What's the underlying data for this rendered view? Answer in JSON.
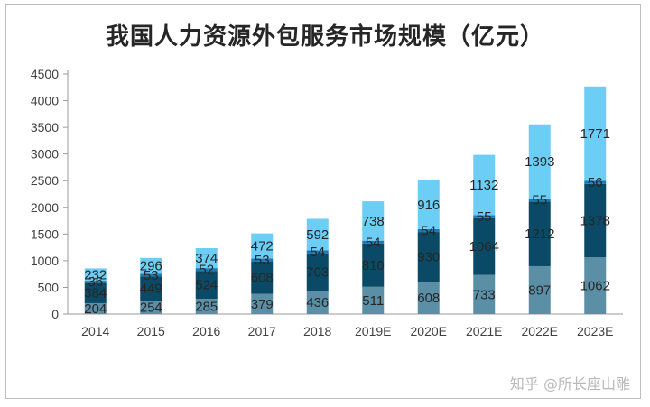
{
  "title": "我国人力资源外包服务市场规模（亿元）",
  "watermark": "知乎 @所长座山雕",
  "chart_data": {
    "type": "bar",
    "stacked": true,
    "title": "我国人力资源外包服务市场规模（亿元）",
    "categories": [
      "2014",
      "2015",
      "2016",
      "2017",
      "2018",
      "2019E",
      "2020E",
      "2021E",
      "2022E",
      "2023E"
    ],
    "series": [
      {
        "values": [
          204,
          254,
          285,
          379,
          436,
          511,
          608,
          733,
          897,
          1062
        ],
        "color": "#5b8fa6"
      },
      {
        "values": [
          384,
          449,
          524,
          608,
          703,
          810,
          930,
          1064,
          1212,
          1378
        ],
        "color": "#0a4a66"
      },
      {
        "values": [
          36,
          53,
          52,
          53,
          54,
          54,
          54,
          55,
          55,
          56
        ],
        "color": "#1a7ab8"
      },
      {
        "values": [
          232,
          296,
          374,
          472,
          592,
          738,
          916,
          1132,
          1393,
          1771
        ],
        "color": "#6ccdf5"
      }
    ],
    "ylim": [
      0,
      4500
    ],
    "yticks": [
      0,
      500,
      1000,
      1500,
      2000,
      2500,
      3000,
      3500,
      4000,
      4500
    ],
    "grid": false
  }
}
